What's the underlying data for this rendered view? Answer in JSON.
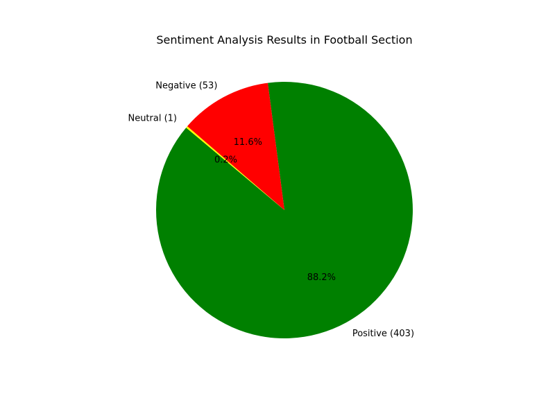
{
  "chart_data": {
    "type": "pie",
    "title": "Sentiment Analysis Results in Football Section",
    "slices": [
      {
        "label": "Positive (403)",
        "value": 403,
        "percent": "88.2%",
        "color": "#008000"
      },
      {
        "label": "Negative (53)",
        "value": 53,
        "percent": "11.6%",
        "color": "#ff0000"
      },
      {
        "label": "Neutral (1)",
        "value": 1,
        "percent": "0.2%",
        "color": "#ffff00"
      }
    ]
  }
}
